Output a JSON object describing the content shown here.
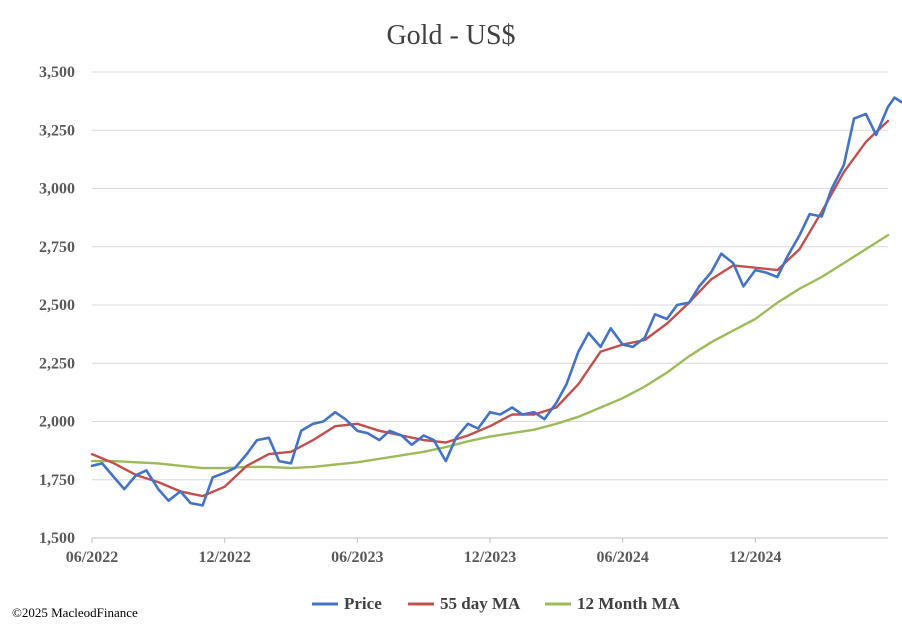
{
  "chart_data": {
    "type": "line",
    "title": "Gold - US$",
    "xlabel": "",
    "ylabel": "",
    "ylim": [
      1500,
      3500
    ],
    "yticks": [
      "1,500",
      "1,750",
      "2,000",
      "2,250",
      "2,500",
      "2,750",
      "3,000",
      "3,250",
      "3,500"
    ],
    "xlim": [
      "2022-06",
      "2025-06"
    ],
    "xticks": [
      "06/2022",
      "12/2022",
      "06/2023",
      "12/2023",
      "06/2024",
      "12/2024"
    ],
    "grid": "horizontal",
    "legend_position": "bottom",
    "series": [
      {
        "name": "Price",
        "color": "#4472C4",
        "points": [
          [
            "2022-06",
            1810
          ],
          [
            "2022-06-15",
            1820
          ],
          [
            "2022-07",
            1760
          ],
          [
            "2022-07-15",
            1710
          ],
          [
            "2022-08",
            1770
          ],
          [
            "2022-08-15",
            1790
          ],
          [
            "2022-09",
            1710
          ],
          [
            "2022-09-15",
            1660
          ],
          [
            "2022-10",
            1700
          ],
          [
            "2022-10-15",
            1650
          ],
          [
            "2022-11",
            1640
          ],
          [
            "2022-11-15",
            1760
          ],
          [
            "2022-12",
            1780
          ],
          [
            "2022-12-15",
            1800
          ],
          [
            "2023-01",
            1860
          ],
          [
            "2023-01-15",
            1920
          ],
          [
            "2023-02",
            1930
          ],
          [
            "2023-02-15",
            1830
          ],
          [
            "2023-03",
            1820
          ],
          [
            "2023-03-15",
            1960
          ],
          [
            "2023-04",
            1990
          ],
          [
            "2023-04-15",
            2000
          ],
          [
            "2023-05",
            2040
          ],
          [
            "2023-05-15",
            2010
          ],
          [
            "2023-06",
            1960
          ],
          [
            "2023-06-15",
            1950
          ],
          [
            "2023-07",
            1920
          ],
          [
            "2023-07-15",
            1960
          ],
          [
            "2023-08",
            1940
          ],
          [
            "2023-08-15",
            1900
          ],
          [
            "2023-09",
            1940
          ],
          [
            "2023-09-15",
            1920
          ],
          [
            "2023-10",
            1830
          ],
          [
            "2023-10-15",
            1930
          ],
          [
            "2023-11",
            1990
          ],
          [
            "2023-11-15",
            1970
          ],
          [
            "2023-12",
            2040
          ],
          [
            "2023-12-15",
            2030
          ],
          [
            "2024-01",
            2060
          ],
          [
            "2024-01-15",
            2030
          ],
          [
            "2024-02",
            2040
          ],
          [
            "2024-02-15",
            2010
          ],
          [
            "2024-03",
            2080
          ],
          [
            "2024-03-15",
            2160
          ],
          [
            "2024-04",
            2300
          ],
          [
            "2024-04-15",
            2380
          ],
          [
            "2024-05",
            2320
          ],
          [
            "2024-05-15",
            2400
          ],
          [
            "2024-06",
            2330
          ],
          [
            "2024-06-15",
            2320
          ],
          [
            "2024-07",
            2360
          ],
          [
            "2024-07-15",
            2460
          ],
          [
            "2024-08",
            2440
          ],
          [
            "2024-08-15",
            2500
          ],
          [
            "2024-09",
            2510
          ],
          [
            "2024-09-15",
            2580
          ],
          [
            "2024-10",
            2640
          ],
          [
            "2024-10-15",
            2720
          ],
          [
            "2024-11",
            2680
          ],
          [
            "2024-11-15",
            2580
          ],
          [
            "2024-12",
            2650
          ],
          [
            "2024-12-15",
            2640
          ],
          [
            "2025-01",
            2620
          ],
          [
            "2025-01-15",
            2710
          ],
          [
            "2025-02",
            2800
          ],
          [
            "2025-02-15",
            2890
          ],
          [
            "2025-03",
            2880
          ],
          [
            "2025-03-15",
            3000
          ],
          [
            "2025-04",
            3100
          ],
          [
            "2025-04-15",
            3300
          ],
          [
            "2025-05",
            3320
          ],
          [
            "2025-05-15",
            3230
          ],
          [
            "2025-06",
            3350
          ],
          [
            "2025-06-10",
            3390
          ],
          [
            "2025-06-20",
            3370
          ]
        ]
      },
      {
        "name": "55 day MA",
        "color": "#C0504D",
        "points": [
          [
            "2022-06",
            1860
          ],
          [
            "2022-07",
            1820
          ],
          [
            "2022-08",
            1770
          ],
          [
            "2022-09",
            1740
          ],
          [
            "2022-10",
            1700
          ],
          [
            "2022-11",
            1680
          ],
          [
            "2022-12",
            1720
          ],
          [
            "2023-01",
            1810
          ],
          [
            "2023-02",
            1860
          ],
          [
            "2023-03",
            1870
          ],
          [
            "2023-04",
            1920
          ],
          [
            "2023-05",
            1980
          ],
          [
            "2023-06",
            1990
          ],
          [
            "2023-07",
            1960
          ],
          [
            "2023-08",
            1940
          ],
          [
            "2023-09",
            1920
          ],
          [
            "2023-10",
            1910
          ],
          [
            "2023-11",
            1940
          ],
          [
            "2023-12",
            1980
          ],
          [
            "2024-01",
            2030
          ],
          [
            "2024-02",
            2030
          ],
          [
            "2024-03",
            2060
          ],
          [
            "2024-04",
            2160
          ],
          [
            "2024-05",
            2300
          ],
          [
            "2024-06",
            2330
          ],
          [
            "2024-07",
            2350
          ],
          [
            "2024-08",
            2420
          ],
          [
            "2024-09",
            2510
          ],
          [
            "2024-10",
            2610
          ],
          [
            "2024-11",
            2670
          ],
          [
            "2024-12",
            2660
          ],
          [
            "2025-01",
            2650
          ],
          [
            "2025-02",
            2740
          ],
          [
            "2025-03",
            2900
          ],
          [
            "2025-04",
            3070
          ],
          [
            "2025-05",
            3200
          ],
          [
            "2025-06",
            3290
          ]
        ]
      },
      {
        "name": "12 Month MA",
        "color": "#9BBB59",
        "points": [
          [
            "2022-06",
            1830
          ],
          [
            "2022-07",
            1830
          ],
          [
            "2022-08",
            1825
          ],
          [
            "2022-09",
            1820
          ],
          [
            "2022-10",
            1810
          ],
          [
            "2022-11",
            1800
          ],
          [
            "2022-12",
            1800
          ],
          [
            "2023-01",
            1805
          ],
          [
            "2023-02",
            1805
          ],
          [
            "2023-03",
            1800
          ],
          [
            "2023-04",
            1805
          ],
          [
            "2023-05",
            1815
          ],
          [
            "2023-06",
            1825
          ],
          [
            "2023-07",
            1840
          ],
          [
            "2023-08",
            1855
          ],
          [
            "2023-09",
            1870
          ],
          [
            "2023-10",
            1890
          ],
          [
            "2023-11",
            1915
          ],
          [
            "2023-12",
            1935
          ],
          [
            "2024-01",
            1950
          ],
          [
            "2024-02",
            1965
          ],
          [
            "2024-03",
            1990
          ],
          [
            "2024-04",
            2020
          ],
          [
            "2024-05",
            2060
          ],
          [
            "2024-06",
            2100
          ],
          [
            "2024-07",
            2150
          ],
          [
            "2024-08",
            2210
          ],
          [
            "2024-09",
            2280
          ],
          [
            "2024-10",
            2340
          ],
          [
            "2024-11",
            2390
          ],
          [
            "2024-12",
            2440
          ],
          [
            "2025-01",
            2510
          ],
          [
            "2025-02",
            2570
          ],
          [
            "2025-03",
            2620
          ],
          [
            "2025-04",
            2680
          ],
          [
            "2025-05",
            2740
          ],
          [
            "2025-06",
            2800
          ]
        ]
      }
    ],
    "footnote": "©2025 MacleodFinance"
  }
}
